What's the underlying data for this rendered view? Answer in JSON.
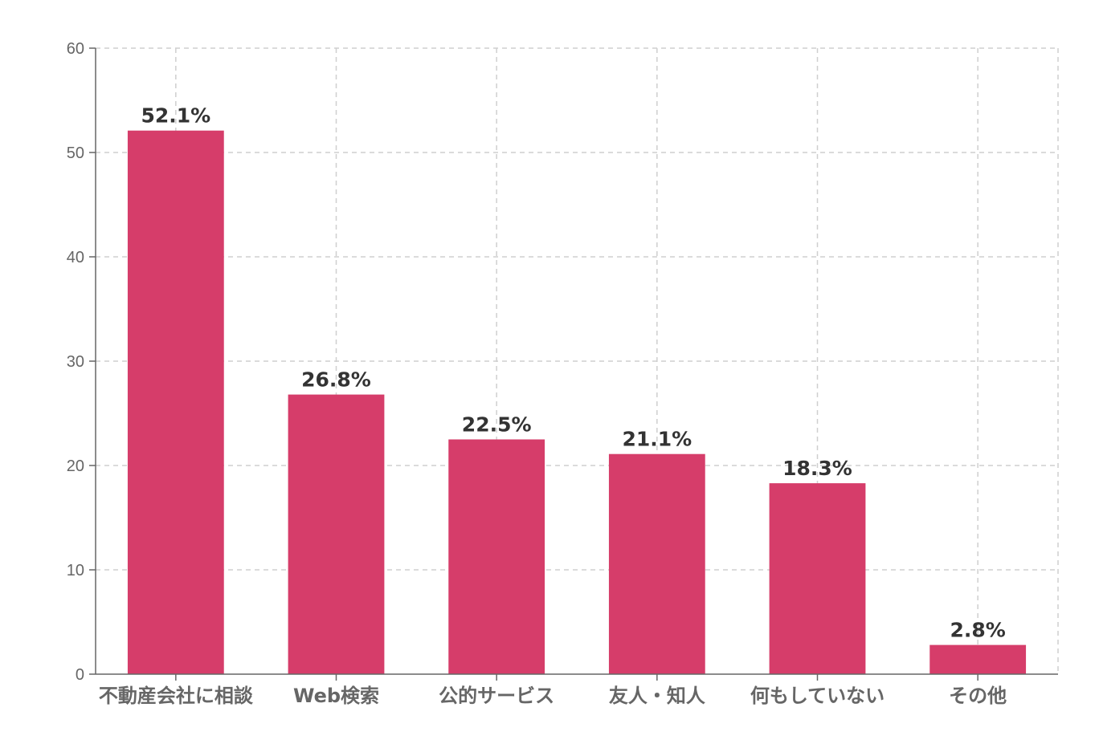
{
  "chart_data": {
    "type": "bar",
    "title": "",
    "xlabel": "",
    "ylabel": "",
    "categories": [
      "不動産会社に相談",
      "Web検索",
      "公的サービス",
      "友人・知人",
      "何もしていない",
      "その他"
    ],
    "values": [
      52.1,
      26.8,
      22.5,
      21.1,
      18.3,
      2.8
    ],
    "data_labels": [
      "52.1%",
      "26.8%",
      "22.5%",
      "21.1%",
      "18.3%",
      "2.8%"
    ],
    "ylim": [
      0,
      60
    ],
    "yticks": [
      0,
      10,
      20,
      30,
      40,
      50,
      60
    ],
    "grid": true,
    "bar_color": "#d63d6a",
    "grid_color": "#cfcfcf",
    "axis_color": "#666666",
    "label_color": "#333333"
  }
}
